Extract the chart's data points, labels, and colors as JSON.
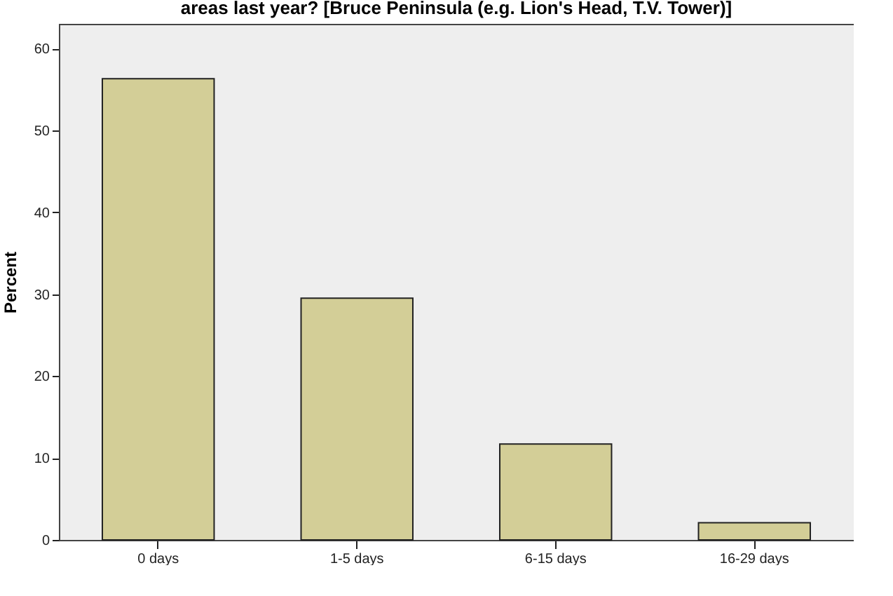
{
  "chart_data": {
    "type": "bar",
    "title": "areas last year? [Bruce Peninsula (e.g. Lion's Head, T.V. Tower)]",
    "ylabel": "Percent",
    "categories": [
      "0 days",
      "1-5 days",
      "6-15 days",
      "16-29 days"
    ],
    "values": [
      56.3,
      29.5,
      11.7,
      2.1
    ],
    "color": "#d3ce97",
    "ylim": [
      0,
      63
    ],
    "yticks": [
      0,
      10,
      20,
      30,
      40,
      50,
      60
    ],
    "grid": false
  }
}
